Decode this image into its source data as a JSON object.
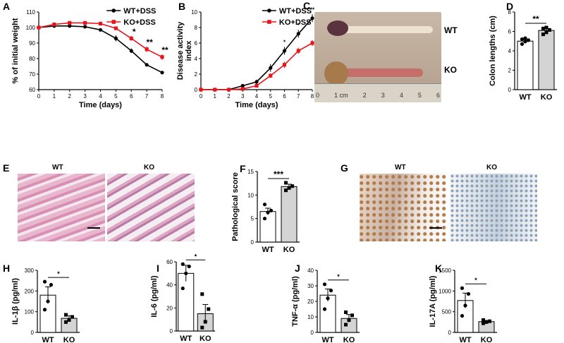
{
  "figure": {
    "panel_letters": [
      "A",
      "B",
      "C",
      "D",
      "E",
      "F",
      "G",
      "H",
      "I",
      "J",
      "K"
    ],
    "photos": {
      "C_labels": [
        "WT",
        "KO"
      ],
      "C_ruler_ticks": [
        "0",
        "1 cm",
        "2",
        "3",
        "4",
        "5",
        "6"
      ],
      "E_labels": [
        "WT",
        "KO"
      ],
      "G_labels": [
        "WT",
        "KO"
      ]
    }
  },
  "chart_data": [
    {
      "id": "A",
      "type": "line",
      "xlabel": "Time (days)",
      "ylabel": "% of initial weight",
      "x": [
        0,
        1,
        2,
        3,
        4,
        5,
        6,
        7,
        8
      ],
      "xlim": [
        0,
        8
      ],
      "ylim": [
        60,
        110
      ],
      "yticks": [
        60,
        70,
        80,
        90,
        100,
        110
      ],
      "series": [
        {
          "name": "WT+DSS",
          "color": "#000000",
          "values": [
            100,
            101,
            101,
            100.5,
            98.5,
            93,
            85,
            76,
            71
          ],
          "err": [
            0.5,
            0.5,
            0.5,
            0.6,
            1,
            2,
            1.5,
            1,
            1
          ]
        },
        {
          "name": "KO+DSS",
          "color": "#e8141c",
          "values": [
            100,
            102,
            103,
            103,
            102.5,
            99.5,
            93,
            86,
            81
          ],
          "err": [
            0.5,
            0.5,
            0.6,
            0.6,
            0.8,
            1,
            1.5,
            1.8,
            1.8
          ]
        }
      ],
      "annotations": [
        {
          "x": 6,
          "text": "*"
        },
        {
          "x": 7,
          "text": "**"
        },
        {
          "x": 8,
          "text": "**"
        }
      ]
    },
    {
      "id": "B",
      "type": "line",
      "ylabel": "Disease activity index",
      "ylabel_lines": [
        "Disease activity",
        "index"
      ],
      "xlabel": "Time (days)",
      "x": [
        0,
        1,
        2,
        3,
        4,
        5,
        6,
        7,
        8
      ],
      "xlim": [
        0,
        8
      ],
      "ylim": [
        0,
        10
      ],
      "yticks": [
        0,
        2,
        4,
        6,
        8,
        10
      ],
      "series": [
        {
          "name": "WT+DSS",
          "color": "#000000",
          "values": [
            0,
            0,
            0,
            0.5,
            1,
            2.8,
            5,
            7.2,
            9.2
          ],
          "err": [
            0,
            0,
            0,
            0.2,
            0.3,
            0.5,
            0.5,
            0.5,
            0.5
          ]
        },
        {
          "name": "KO+DSS",
          "color": "#e8141c",
          "values": [
            0,
            0,
            0,
            0.1,
            0.5,
            1.8,
            3.2,
            5,
            6
          ],
          "err": [
            0,
            0,
            0,
            0.1,
            0.2,
            0.3,
            0.4,
            0.4,
            0.4
          ]
        }
      ],
      "annotations": [
        {
          "x": 6,
          "text": "*"
        },
        {
          "x": 7,
          "text": "*"
        },
        {
          "x": 8,
          "text": "**"
        }
      ]
    },
    {
      "id": "D",
      "type": "bar",
      "ylabel": "Colon lengths (cm)",
      "categories": [
        "WT",
        "KO"
      ],
      "values": [
        5.0,
        6.1
      ],
      "err": [
        0.15,
        0.2
      ],
      "points": [
        [
          4.7,
          4.95,
          5.1,
          5.2,
          5.3
        ],
        [
          5.7,
          5.9,
          6.15,
          6.3,
          6.4
        ]
      ],
      "ylim": [
        0,
        8
      ],
      "yticks": [
        0,
        2,
        4,
        6,
        8
      ],
      "sig": "**"
    },
    {
      "id": "F",
      "type": "bar",
      "ylabel": "Pathological score",
      "categories": [
        "WT",
        "KO"
      ],
      "values": [
        6.5,
        11.8
      ],
      "err": [
        0.7,
        0.5
      ],
      "points": [
        [
          5.0,
          6.3,
          6.7,
          8.0
        ],
        [
          11.0,
          11.5,
          11.9,
          12.6
        ]
      ],
      "ylim": [
        0,
        15
      ],
      "yticks": [
        0,
        5,
        10,
        15
      ],
      "sig": "***"
    },
    {
      "id": "H",
      "type": "bar",
      "ylabel": "IL-1β (pg/ml)",
      "categories": [
        "WT",
        "KO"
      ],
      "values": [
        180,
        68
      ],
      "err": [
        40,
        12
      ],
      "points": [
        [
          110,
          150,
          230,
          245
        ],
        [
          50,
          60,
          75,
          85
        ]
      ],
      "ylim": [
        0,
        300
      ],
      "yticks": [
        0,
        100,
        200,
        300
      ],
      "sig": "*"
    },
    {
      "id": "I",
      "type": "bar",
      "ylabel": "IL-6 (pg/ml)",
      "categories": [
        "WT",
        "KO"
      ],
      "values": [
        50,
        15
      ],
      "err": [
        7,
        8
      ],
      "points": [
        [
          37,
          50,
          56,
          58
        ],
        [
          3,
          8,
          19,
          32
        ]
      ],
      "ylim": [
        0,
        60
      ],
      "yticks": [
        0,
        20,
        40,
        60
      ],
      "sig": "*"
    },
    {
      "id": "J",
      "type": "bar",
      "ylabel": "TNF-α (pg/ml)",
      "categories": [
        "WT",
        "KO"
      ],
      "values": [
        24,
        9
      ],
      "err": [
        4,
        2.5
      ],
      "points": [
        [
          15,
          22,
          27,
          31
        ],
        [
          5,
          8,
          11,
          13
        ]
      ],
      "ylim": [
        0,
        40
      ],
      "yticks": [
        0,
        10,
        20,
        30,
        40
      ],
      "sig": "*"
    },
    {
      "id": "K",
      "type": "bar",
      "ylabel": "IL-17A (pg/ml)",
      "categories": [
        "WT",
        "KO"
      ],
      "values": [
        770,
        260
      ],
      "err": [
        180,
        30
      ],
      "points": [
        [
          400,
          650,
          930,
          1070
        ],
        [
          220,
          250,
          270,
          300
        ]
      ],
      "ylim": [
        0,
        1500
      ],
      "yticks": [
        0,
        500,
        1000,
        1500
      ],
      "sig": "*"
    }
  ]
}
